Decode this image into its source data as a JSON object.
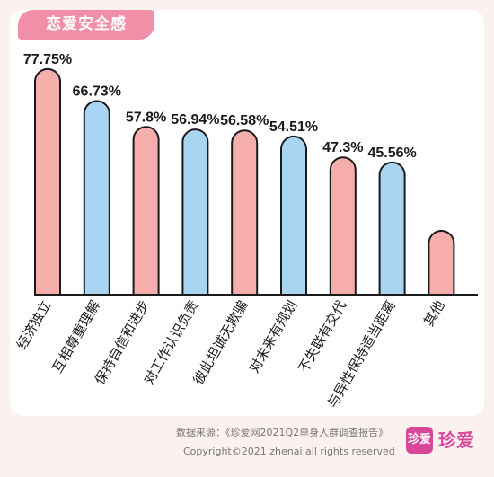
{
  "title": "恋爱安全感",
  "chart_data": {
    "type": "bar",
    "categories": [
      "经济独立",
      "互相尊重理解",
      "保持自信和进步",
      "对工作认识负责",
      "彼此坦诚无欺骗",
      "对未来有规划",
      "不失联有交代",
      "与异性保持适当距离",
      "其他"
    ],
    "value_labels": [
      "77.75%",
      "66.73%",
      "57.8%",
      "56.94%",
      "56.58%",
      "54.51%",
      "47.3%",
      "45.56%",
      ""
    ],
    "values": [
      77.75,
      66.73,
      57.8,
      56.94,
      56.58,
      54.51,
      47.3,
      45.56,
      22.0
    ],
    "ylim": [
      0,
      100
    ],
    "colors": [
      "#f6aeac",
      "#a9d4f2",
      "#f6aeac",
      "#a9d4f2",
      "#f6aeac",
      "#a9d4f2",
      "#f6aeac",
      "#a9d4f2",
      "#f6aeac"
    ],
    "title": "",
    "xlabel": "",
    "ylabel": ""
  },
  "footer": {
    "source": "数据来源：《珍爱网2021Q2单身人群调查报告》",
    "copyright": "Copyright©2021  zhenai  all rights reserved",
    "logo_mark": "珍爱",
    "logo_text": "珍爱"
  }
}
